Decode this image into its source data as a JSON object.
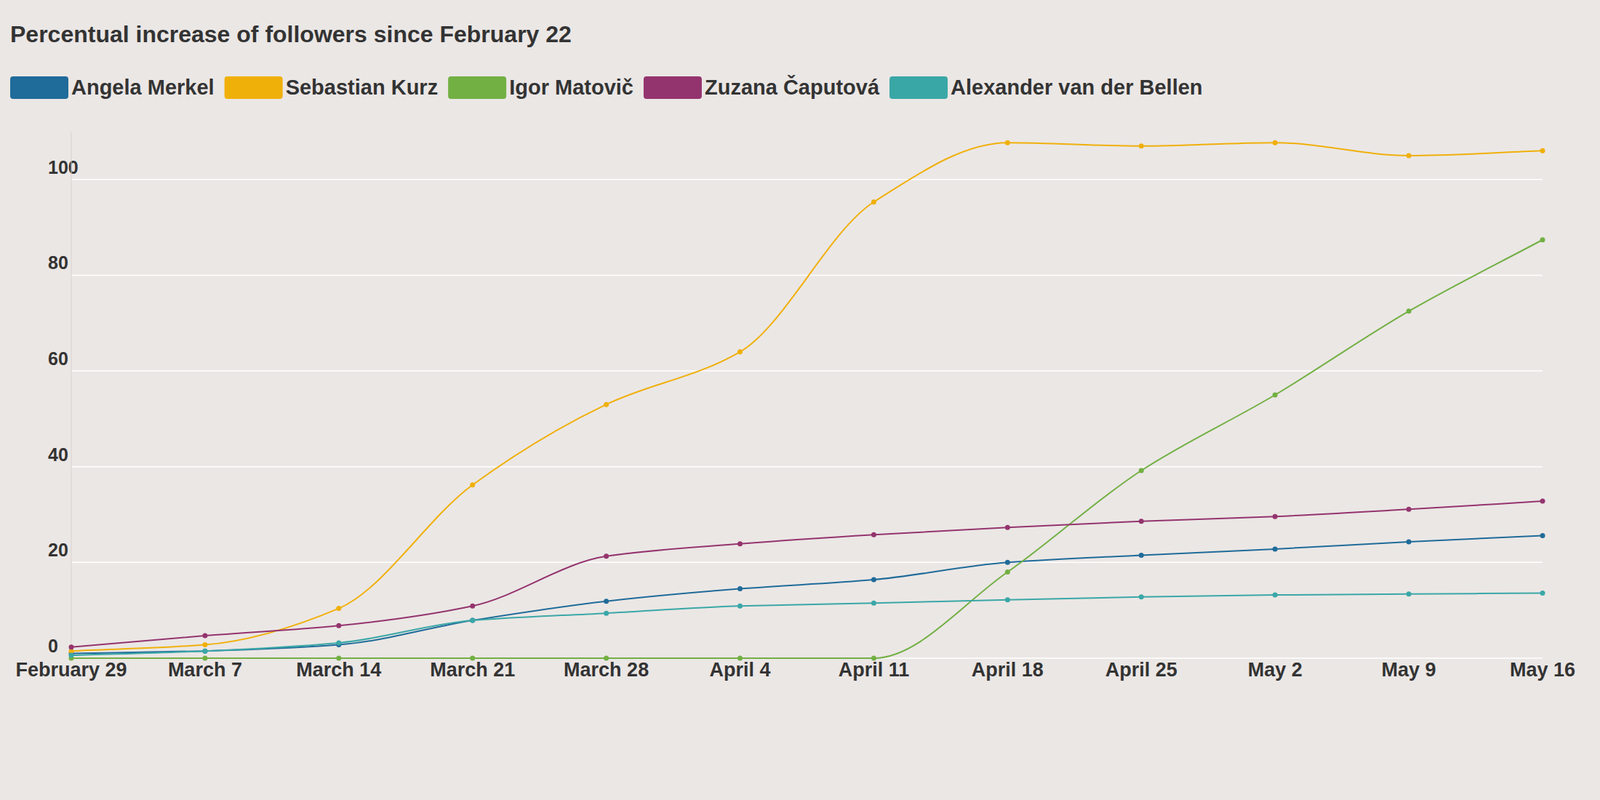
{
  "chart_data": {
    "type": "line",
    "title": "Percentual increase of followers since February 22",
    "x": [
      "February 29",
      "March 7",
      "March 14",
      "March 21",
      "March 28",
      "April 4",
      "April 11",
      "April 18",
      "April 25",
      "May 2",
      "May 9",
      "May 16"
    ],
    "series": [
      {
        "name": "Angela Merkel",
        "color": "#1f6b99",
        "values": [
          1,
          1.5,
          2.8,
          7.9,
          11.9,
          14.5,
          16.4,
          20,
          21.5,
          22.8,
          24.3,
          25.6
        ]
      },
      {
        "name": "Sebastian Kurz",
        "color": "#f0b00a",
        "values": [
          1.5,
          2.8,
          10.4,
          36.2,
          53,
          64,
          95.3,
          107.7,
          107,
          107.7,
          105,
          106
        ]
      },
      {
        "name": "Igor Matovič",
        "color": "#72b043",
        "values": [
          0,
          0,
          0,
          0,
          0,
          0,
          0,
          18,
          39.2,
          55,
          72.5,
          87.4
        ]
      },
      {
        "name": "Zuzana Čaputová",
        "color": "#94346e",
        "values": [
          2.3,
          4.7,
          6.8,
          10.9,
          21.3,
          23.9,
          25.8,
          27.3,
          28.6,
          29.6,
          31.1,
          32.8
        ]
      },
      {
        "name": "Alexander van der Bellen",
        "color": "#3aa7a7",
        "values": [
          0.6,
          1.5,
          3.2,
          7.9,
          9.4,
          10.9,
          11.5,
          12.2,
          12.8,
          13.2,
          13.4,
          13.6
        ]
      }
    ],
    "ylim": [
      0,
      110
    ],
    "yticks": [
      0,
      20,
      40,
      60,
      80,
      100
    ],
    "grid": true,
    "legend": "top",
    "marker": "circle"
  }
}
